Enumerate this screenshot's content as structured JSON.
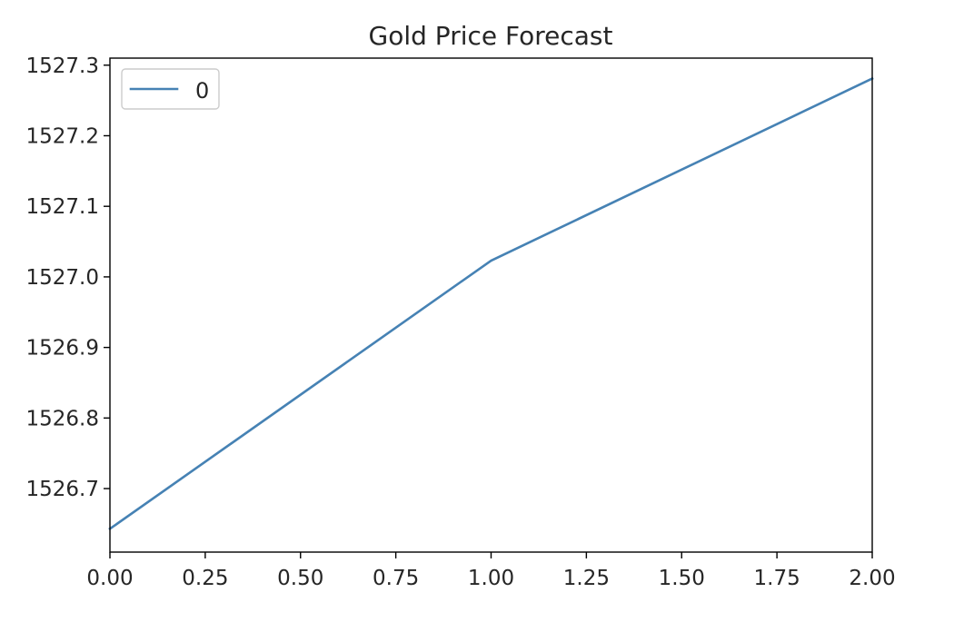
{
  "chart_data": {
    "type": "line",
    "title": "Gold Price Forecast",
    "xlabel": "",
    "ylabel": "",
    "xlim": [
      0.0,
      2.0
    ],
    "ylim": [
      1526.61,
      1527.31
    ],
    "x_ticks": [
      0.0,
      0.25,
      0.5,
      0.75,
      1.0,
      1.25,
      1.5,
      1.75,
      2.0
    ],
    "x_tick_labels": [
      "0.00",
      "0.25",
      "0.50",
      "0.75",
      "1.00",
      "1.25",
      "1.50",
      "1.75",
      "2.00"
    ],
    "y_ticks": [
      1526.7,
      1526.8,
      1526.9,
      1527.0,
      1527.1,
      1527.2,
      1527.3
    ],
    "y_tick_labels": [
      "1526.7",
      "1526.8",
      "1526.9",
      "1527.0",
      "1527.1",
      "1527.2",
      "1527.3"
    ],
    "grid": false,
    "legend": {
      "placement": "top-left"
    },
    "series": [
      {
        "name": "0",
        "color": "#4682b4",
        "x": [
          0,
          1,
          2
        ],
        "values": [
          1526.643,
          1527.023,
          1527.281
        ]
      }
    ]
  }
}
